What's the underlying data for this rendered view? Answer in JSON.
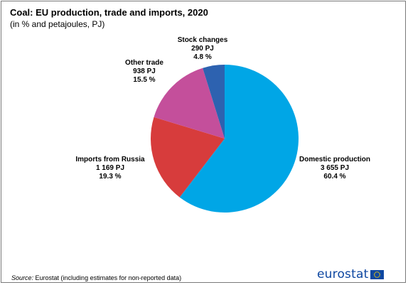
{
  "chart_data": {
    "type": "pie",
    "title": "Coal: EU production, trade and imports, 2020",
    "subtitle": "(in % and petajoules, PJ)",
    "slices": [
      {
        "label": "Domestic production",
        "value_pj": "3 655 PJ",
        "percent": 60.4,
        "percent_text": "60.4 %",
        "color": "#00a6e6"
      },
      {
        "label": "Imports from Russia",
        "value_pj": "1 169 PJ",
        "percent": 19.3,
        "percent_text": "19.3 %",
        "color": "#d73c3c"
      },
      {
        "label": "Other trade",
        "value_pj": "938 PJ",
        "percent": 15.5,
        "percent_text": "15.5 %",
        "color": "#c44f9b"
      },
      {
        "label": "Stock changes",
        "value_pj": "290 PJ",
        "percent": 4.8,
        "percent_text": "4.8 %",
        "color": "#2d62b0"
      }
    ]
  },
  "footer": {
    "source_label": "Source:",
    "source_text": " Eurostat (including estimates for non-reported data)",
    "logo_text": "eurostat"
  }
}
